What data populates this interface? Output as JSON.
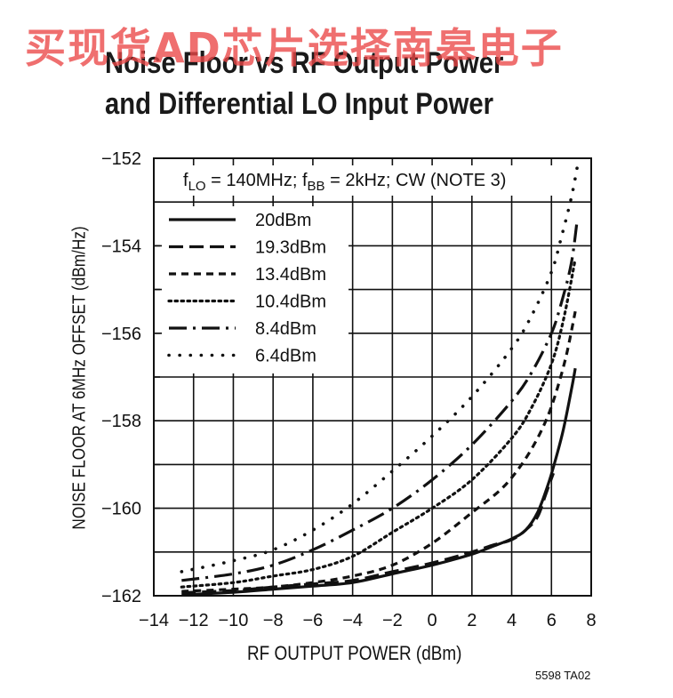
{
  "watermark": "买现货AD芯片选择南皋电子",
  "title_line1": "Noise Floor vs RF Output Power",
  "title_line2": "and Differential LO Input Power",
  "part_number": "5598 TA02",
  "chart_data": {
    "type": "line",
    "title": "Noise Floor vs RF Output Power and Differential LO Input Power",
    "xlabel": "RF OUTPUT POWER (dBm)",
    "ylabel": "NOISE FLOOR AT 6MHz OFFSET (dBm/Hz)",
    "xlim": [
      -14,
      8
    ],
    "ylim": [
      -162,
      -152
    ],
    "x_ticks": [
      "−14",
      "−12",
      "−10",
      "−8",
      "−6",
      "−4",
      "−2",
      "0",
      "2",
      "4",
      "6",
      "8"
    ],
    "y_ticks": [
      "−152",
      "−154",
      "−156",
      "−158",
      "−160",
      "−162"
    ],
    "grid": true,
    "legend_position": "top-left",
    "condition_note": {
      "f_lo": "f",
      "lo_sub": "LO",
      "lo_val": " = 140MHz;  f",
      "bb_sub": "BB",
      "bb_val": " = 2kHz; CW (NOTE 3)"
    },
    "series": [
      {
        "name": "20dBm",
        "dash": "solid",
        "x": [
          -12.6,
          -10,
          -8,
          -6,
          -4,
          -2,
          0,
          2,
          3,
          4,
          4.7,
          5.3,
          5.8,
          6.2,
          6.6,
          7.0,
          7.2
        ],
        "y": [
          -161.98,
          -161.92,
          -161.85,
          -161.78,
          -161.7,
          -161.5,
          -161.3,
          -161.05,
          -160.88,
          -160.7,
          -160.5,
          -160.1,
          -159.5,
          -158.9,
          -158.2,
          -157.3,
          -156.8
        ]
      },
      {
        "name": "19.3dBm",
        "dash": "longdash",
        "x": [
          -12.6,
          -10,
          -8,
          -6,
          -4,
          -2,
          0,
          2,
          3,
          4,
          4.7,
          5.3,
          5.7,
          6.1
        ],
        "y": [
          -161.93,
          -161.88,
          -161.8,
          -161.73,
          -161.65,
          -161.45,
          -161.25,
          -161.0,
          -160.85,
          -160.72,
          -160.5,
          -160.2,
          -159.7,
          -159.2
        ]
      },
      {
        "name": "13.4dBm",
        "dash": "dash",
        "x": [
          -12.6,
          -10,
          -8,
          -6,
          -4,
          -2,
          0,
          2,
          3.5,
          4.5,
          5.3,
          5.9,
          6.4,
          6.8,
          7.2
        ],
        "y": [
          -161.9,
          -161.85,
          -161.8,
          -161.7,
          -161.55,
          -161.3,
          -160.8,
          -160.1,
          -159.55,
          -159.0,
          -158.4,
          -157.8,
          -157.1,
          -156.4,
          -155.5
        ]
      },
      {
        "name": "10.4dBm",
        "dash": "dot",
        "x": [
          -12.6,
          -10,
          -8,
          -6,
          -4,
          -2,
          0,
          2,
          4,
          5,
          6,
          6.6,
          7.2
        ],
        "y": [
          -161.8,
          -161.7,
          -161.55,
          -161.4,
          -161.1,
          -160.55,
          -160.0,
          -159.35,
          -158.4,
          -157.7,
          -156.7,
          -155.7,
          -154.3
        ]
      },
      {
        "name": "8.4dBm",
        "dash": "dashdot",
        "x": [
          -12.6,
          -10,
          -8,
          -6,
          -4,
          -2,
          0,
          2,
          4,
          5,
          6,
          6.5,
          7.0,
          7.3
        ],
        "y": [
          -161.65,
          -161.5,
          -161.3,
          -160.95,
          -160.5,
          -160.0,
          -159.35,
          -158.55,
          -157.55,
          -156.9,
          -156.0,
          -155.3,
          -154.4,
          -153.4
        ]
      },
      {
        "name": "6.4dBm",
        "dash": "sparsedot",
        "x": [
          -12.6,
          -10,
          -8,
          -6,
          -4,
          -2,
          0,
          2,
          4,
          5,
          6,
          6.5,
          7.0,
          7.3
        ],
        "y": [
          -161.45,
          -161.2,
          -160.95,
          -160.5,
          -159.9,
          -159.15,
          -158.35,
          -157.45,
          -156.35,
          -155.6,
          -154.6,
          -153.8,
          -152.9,
          -152.2
        ]
      }
    ]
  }
}
